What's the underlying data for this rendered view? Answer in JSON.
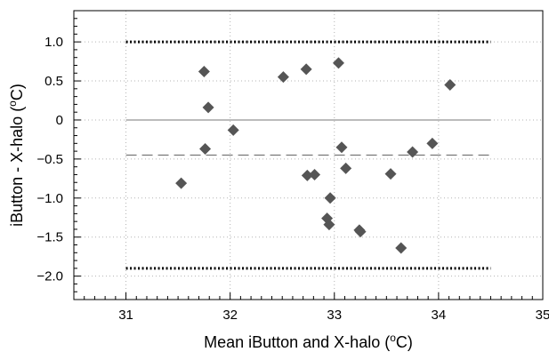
{
  "chart_data": {
    "type": "scatter",
    "title": "",
    "xlabel": "Mean iButton and X-halo (",
    "xlabel_sup": "o",
    "xlabel_unit": "C)",
    "ylabel": "iButton - X-halo (",
    "ylabel_sup": "o",
    "ylabel_unit": "C)",
    "xlim": [
      30.5,
      35.0
    ],
    "ylim": [
      -2.3,
      1.4
    ],
    "grid": true,
    "x_ticks": [
      31,
      32,
      33,
      34,
      35
    ],
    "x_tick_labels": [
      "31",
      "32",
      "33",
      "34",
      "35"
    ],
    "y_ticks": [
      1.0,
      0.5,
      0,
      -0.5,
      -1.0,
      -1.5,
      -2.0
    ],
    "y_tick_labels": [
      "1.0",
      "0.5",
      "0",
      "−0.5",
      "−1.0",
      "−1.5",
      "−2.0"
    ],
    "marker": "diamond",
    "marker_color": "#555555",
    "points": [
      {
        "x": 31.53,
        "y": -0.81
      },
      {
        "x": 31.75,
        "y": 0.62
      },
      {
        "x": 31.79,
        "y": 0.16
      },
      {
        "x": 31.76,
        "y": -0.37
      },
      {
        "x": 32.03,
        "y": -0.13
      },
      {
        "x": 32.51,
        "y": 0.55
      },
      {
        "x": 32.73,
        "y": 0.65
      },
      {
        "x": 32.74,
        "y": -0.71
      },
      {
        "x": 32.81,
        "y": -0.7
      },
      {
        "x": 32.93,
        "y": -1.26
      },
      {
        "x": 32.95,
        "y": -1.34
      },
      {
        "x": 32.96,
        "y": -1.0
      },
      {
        "x": 33.04,
        "y": 0.73
      },
      {
        "x": 33.07,
        "y": -0.35
      },
      {
        "x": 33.11,
        "y": -0.62
      },
      {
        "x": 33.24,
        "y": -1.41
      },
      {
        "x": 33.25,
        "y": -1.43
      },
      {
        "x": 33.54,
        "y": -0.69
      },
      {
        "x": 33.64,
        "y": -1.64
      },
      {
        "x": 33.75,
        "y": -0.41
      },
      {
        "x": 33.94,
        "y": -0.3
      },
      {
        "x": 34.11,
        "y": 0.45
      }
    ],
    "reference_lines": [
      {
        "y": 0,
        "x_range": [
          31.0,
          34.5
        ],
        "style": "solid",
        "color": "#777777"
      },
      {
        "y": -0.45,
        "x_range": [
          31.0,
          34.5
        ],
        "style": "dashed",
        "color": "#777777"
      },
      {
        "y": 1.0,
        "x_range": [
          31.0,
          34.5
        ],
        "style": "dotted",
        "color": "#000000"
      },
      {
        "y": -1.9,
        "x_range": [
          31.0,
          34.5
        ],
        "style": "dotted",
        "color": "#000000"
      }
    ]
  }
}
